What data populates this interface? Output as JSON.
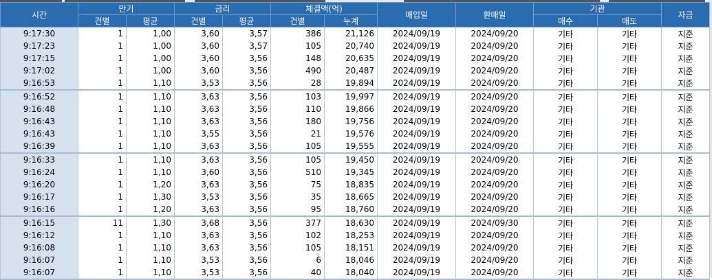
{
  "headers": {
    "time": "시간",
    "maturity": "만기",
    "rate": "금리",
    "amount": "체결액(억)",
    "buy_date": "매입일",
    "sell_date": "환매일",
    "institution": "기관",
    "fund": "자금",
    "count": "건별",
    "avg": "평균",
    "cumulative": "누계",
    "buy": "매수",
    "sell": "매도"
  },
  "rows": [
    [
      "9:17:30",
      "1",
      "1,00",
      "3,60",
      "3,57",
      "386",
      "21,126",
      "2024/09/19",
      "2024/09/20",
      "기타",
      "기타",
      "지준"
    ],
    [
      "9:17:23",
      "1",
      "1,00",
      "3,60",
      "3,57",
      "105",
      "20,740",
      "2024/09/19",
      "2024/09/20",
      "기타",
      "기타",
      "지준"
    ],
    [
      "9:17:15",
      "1",
      "1,00",
      "3,60",
      "3,56",
      "148",
      "20,635",
      "2024/09/19",
      "2024/09/20",
      "기타",
      "기타",
      "지준"
    ],
    [
      "9:17:02",
      "1",
      "1,00",
      "3,60",
      "3,56",
      "490",
      "20,487",
      "2024/09/19",
      "2024/09/20",
      "기타",
      "기타",
      "지준"
    ],
    [
      "9:16:53",
      "1",
      "1,10",
      "3,53",
      "3,56",
      "28",
      "19,894",
      "2024/09/19",
      "2024/09/20",
      "기타",
      "기타",
      "지준"
    ],
    [
      "9:16:52",
      "1",
      "1,10",
      "3,63",
      "3,56",
      "103",
      "19,997",
      "2024/09/19",
      "2024/09/20",
      "기타",
      "기타",
      "지준"
    ],
    [
      "9:16:48",
      "1",
      "1,10",
      "3,63",
      "3,56",
      "110",
      "19,866",
      "2024/09/19",
      "2024/09/20",
      "기타",
      "기타",
      "지준"
    ],
    [
      "9:16:43",
      "1",
      "1,10",
      "3,63",
      "3,56",
      "180",
      "19,756",
      "2024/09/19",
      "2024/09/20",
      "기타",
      "기타",
      "지준"
    ],
    [
      "9:16:43",
      "1",
      "1,10",
      "3,55",
      "3,56",
      "21",
      "19,576",
      "2024/09/19",
      "2024/09/20",
      "기타",
      "기타",
      "지준"
    ],
    [
      "9:16:39",
      "1",
      "1,10",
      "3,63",
      "3,56",
      "105",
      "19,555",
      "2024/09/19",
      "2024/09/20",
      "기타",
      "기타",
      "지준"
    ],
    [
      "9:16:33",
      "1",
      "1,10",
      "3,63",
      "3,56",
      "105",
      "19,450",
      "2024/09/19",
      "2024/09/20",
      "기타",
      "기타",
      "지준"
    ],
    [
      "9:16:24",
      "1",
      "1,10",
      "3,60",
      "3,56",
      "510",
      "19,345",
      "2024/09/19",
      "2024/09/20",
      "기타",
      "기타",
      "지준"
    ],
    [
      "9:16:20",
      "1",
      "1,20",
      "3,63",
      "3,56",
      "75",
      "18,835",
      "2024/09/19",
      "2024/09/20",
      "기타",
      "기타",
      "지준"
    ],
    [
      "9:16:17",
      "1",
      "1,30",
      "3,53",
      "3,56",
      "35",
      "18,665",
      "2024/09/19",
      "2024/09/20",
      "기타",
      "기타",
      "지준"
    ],
    [
      "9:16:16",
      "1",
      "1,20",
      "3,63",
      "3,56",
      "95",
      "18,760",
      "2024/09/19",
      "2024/09/20",
      "기타",
      "기타",
      "지준"
    ],
    [
      "9:16:15",
      "11",
      "1,30",
      "3,68",
      "3,56",
      "377",
      "18,630",
      "2024/09/19",
      "2024/09/30",
      "기타",
      "기타",
      "지준"
    ],
    [
      "9:16:12",
      "1",
      "1,10",
      "3,63",
      "3,56",
      "102",
      "18,253",
      "2024/09/19",
      "2024/09/20",
      "기타",
      "기타",
      "지준"
    ],
    [
      "9:16:08",
      "1",
      "1,10",
      "3,63",
      "3,56",
      "105",
      "18,151",
      "2024/09/19",
      "2024/09/20",
      "기타",
      "기타",
      "지준"
    ],
    [
      "9:16:07",
      "1",
      "1,10",
      "3,53",
      "3,56",
      "6",
      "18,046",
      "2024/09/19",
      "2024/09/20",
      "기타",
      "기타",
      "지준"
    ],
    [
      "9:16:07",
      "1",
      "1,10",
      "3,53",
      "3,56",
      "40",
      "18,040",
      "2024/09/19",
      "2024/09/20",
      "기타",
      "기타",
      "지준"
    ]
  ]
}
